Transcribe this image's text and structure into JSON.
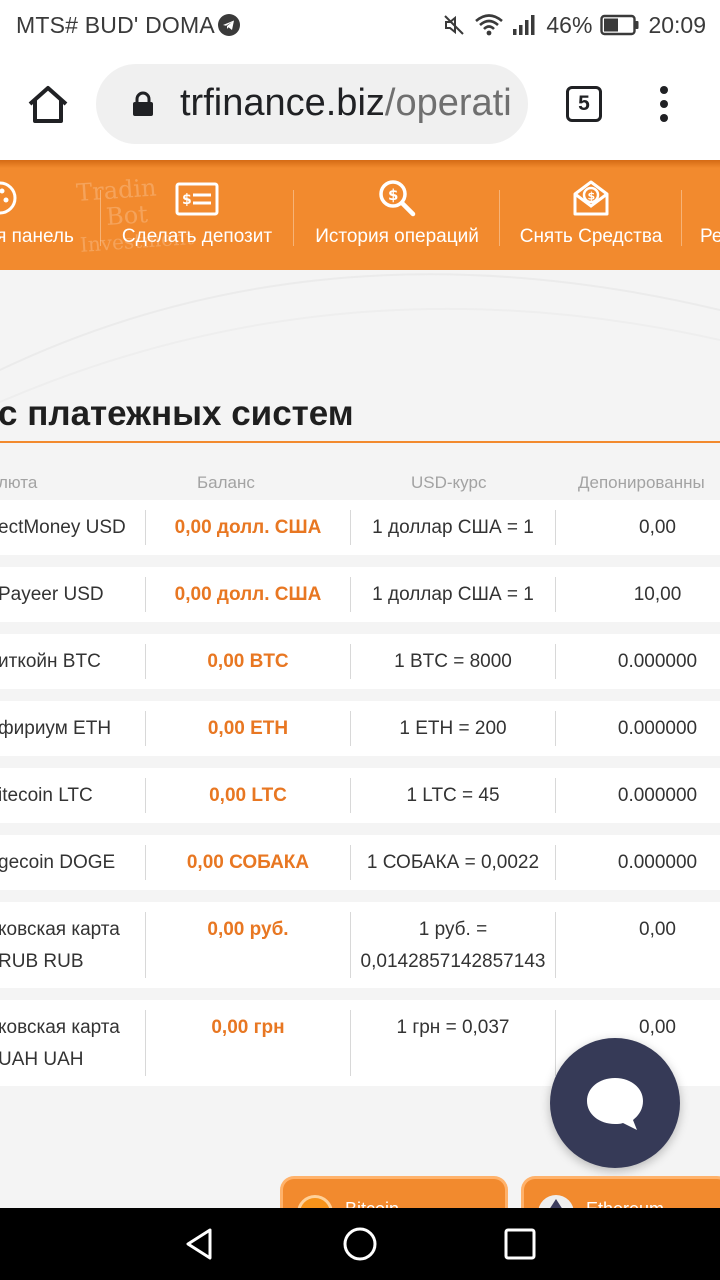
{
  "status_bar": {
    "carrier": "MTS# BUD' DOMA",
    "battery": "46%",
    "time": "20:09"
  },
  "browser": {
    "url_domain": "trfinance.biz",
    "url_path": "/operati",
    "tab_count": "5"
  },
  "nav": {
    "items": [
      {
        "label": "я панель",
        "icon": "dashboard-icon"
      },
      {
        "label": "Сделать депозит",
        "icon": "deposit-card-icon"
      },
      {
        "label": "История операций",
        "icon": "search-money-icon"
      },
      {
        "label": "Снять Средства",
        "icon": "withdraw-envelope-icon"
      },
      {
        "label": "Ре",
        "icon": ""
      }
    ],
    "bg_text": [
      "Tradin",
      "Bot",
      "Investment"
    ]
  },
  "page": {
    "title": "с платежных систем"
  },
  "table": {
    "headers": [
      "люта",
      "Баланс",
      "USD-курс",
      "Депонированны"
    ],
    "rows": [
      {
        "name": [
          "ectMoney USD"
        ],
        "balance": "0,00 долл. США",
        "rate": [
          "1 доллар США = 1"
        ],
        "deposited": "0,00"
      },
      {
        "name": [
          "Payeer USD"
        ],
        "balance": "0,00 долл. США",
        "rate": [
          "1 доллар США = 1"
        ],
        "deposited": "10,00"
      },
      {
        "name": [
          "иткойн BTC"
        ],
        "balance": "0,00 BTC",
        "rate": [
          "1 BTC = 8000"
        ],
        "deposited": "0.000000"
      },
      {
        "name": [
          "фириум ETH"
        ],
        "balance": "0,00 ETH",
        "rate": [
          "1 ETH = 200"
        ],
        "deposited": "0.000000"
      },
      {
        "name": [
          "itecoin LTC"
        ],
        "balance": "0,00 LTC",
        "rate": [
          "1 LTC = 45"
        ],
        "deposited": "0.000000"
      },
      {
        "name": [
          "gecoin DOGE"
        ],
        "balance": "0,00 СОБАКА",
        "rate": [
          "1 СОБАКА = 0,0022"
        ],
        "deposited": "0.000000"
      },
      {
        "name": [
          "ковская карта",
          "RUB RUB"
        ],
        "balance": "0,00 руб.",
        "rate": [
          "1 руб. =",
          "0,0142857142857143"
        ],
        "deposited": "0,00"
      },
      {
        "name": [
          "ковская карта",
          "UAH UAH"
        ],
        "balance": "0,00 грн",
        "rate": [
          "1 грн = 0,037"
        ],
        "deposited": "0,00"
      }
    ]
  },
  "coin_tabs": [
    {
      "label": "Bitcoin",
      "color": "#f7931a"
    },
    {
      "label": "Ethereum",
      "color": "#3c3c5d"
    }
  ],
  "colors": {
    "accent": "#f28a2e",
    "balance_text": "#e87722",
    "chat_bubble": "#363a57"
  }
}
